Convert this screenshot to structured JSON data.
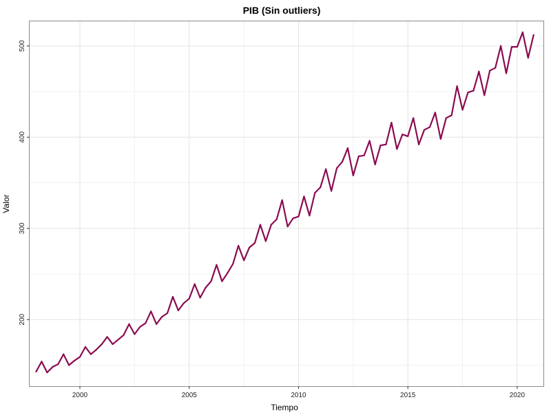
{
  "chart_data": {
    "type": "line",
    "title": "PIB (Sin outliers)",
    "xlabel": "Tiempo",
    "ylabel": "Valor",
    "xlim": [
      1997.7,
      2021.2
    ],
    "ylim": [
      127,
      527
    ],
    "x_ticks": [
      2000,
      2005,
      2010,
      2015,
      2020
    ],
    "y_ticks": [
      200,
      300,
      400,
      500
    ],
    "grid": true,
    "legend": "none",
    "line_color": "#8B0A50",
    "series": [
      {
        "x": [
          1998.0,
          1998.25,
          1998.5,
          1998.75,
          1999.0,
          1999.25,
          1999.5,
          1999.75,
          2000.0,
          2000.25,
          2000.5,
          2000.75,
          2001.0,
          2001.25,
          2001.5,
          2001.75,
          2002.0,
          2002.25,
          2002.5,
          2002.75,
          2003.0,
          2003.25,
          2003.5,
          2003.75,
          2004.0,
          2004.25,
          2004.5,
          2004.75,
          2005.0,
          2005.25,
          2005.5,
          2005.75,
          2006.0,
          2006.25,
          2006.5,
          2006.75,
          2007.0,
          2007.25,
          2007.5,
          2007.75,
          2008.0,
          2008.25,
          2008.5,
          2008.75,
          2009.0,
          2009.25,
          2009.5,
          2009.75,
          2010.0,
          2010.25,
          2010.5,
          2010.75,
          2011.0,
          2011.25,
          2011.5,
          2011.75,
          2012.0,
          2012.25,
          2012.5,
          2012.75,
          2013.0,
          2013.25,
          2013.5,
          2013.75,
          2014.0,
          2014.25,
          2014.5,
          2014.75,
          2015.0,
          2015.25,
          2015.5,
          2015.75,
          2016.0,
          2016.25,
          2016.5,
          2016.75,
          2017.0,
          2017.25,
          2017.5,
          2017.75,
          2018.0,
          2018.25,
          2018.5,
          2018.75,
          2019.0,
          2019.25,
          2019.5,
          2019.75,
          2020.0,
          2020.25,
          2020.5,
          2020.75
        ],
        "values": [
          143,
          154,
          142,
          148,
          151,
          162,
          150,
          155,
          159,
          170,
          162,
          167,
          173,
          181,
          173,
          178,
          183,
          195,
          184,
          192,
          196,
          209,
          195,
          203,
          207,
          225,
          210,
          218,
          223,
          239,
          224,
          235,
          242,
          260,
          242,
          251,
          261,
          281,
          265,
          279,
          284,
          304,
          286,
          304,
          310,
          331,
          302,
          311,
          313,
          335,
          314,
          339,
          345,
          365,
          341,
          366,
          373,
          388,
          358,
          379,
          380,
          396,
          370,
          391,
          392,
          416,
          387,
          403,
          401,
          421,
          392,
          408,
          411,
          427,
          398,
          421,
          424,
          456,
          430,
          449,
          451,
          472,
          446,
          473,
          476,
          500,
          470,
          499,
          499,
          515,
          487,
          512
        ]
      }
    ]
  }
}
